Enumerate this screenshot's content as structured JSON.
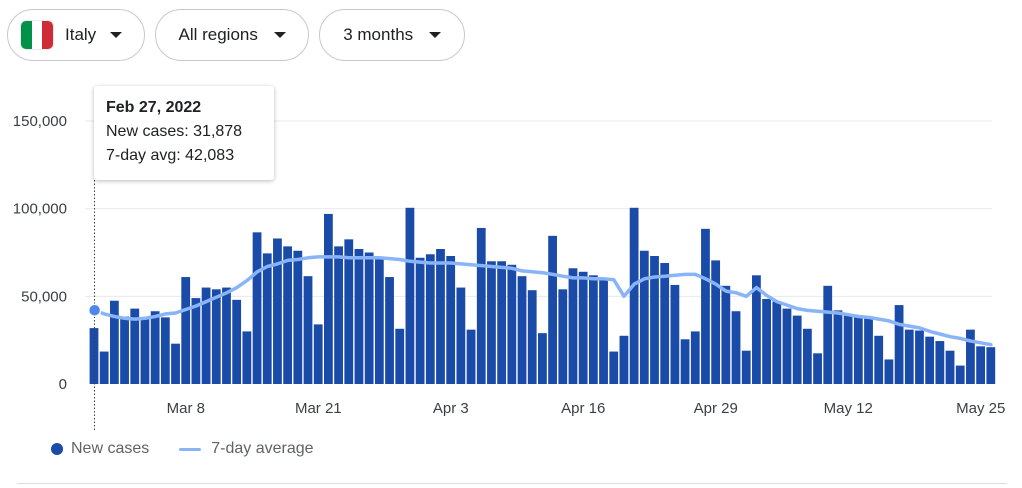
{
  "filters": {
    "country": {
      "label": "Italy",
      "flag_colors": [
        "#009246",
        "#ffffff",
        "#ce2b37"
      ]
    },
    "region": {
      "label": "All regions"
    },
    "period": {
      "label": "3 months"
    }
  },
  "tooltip": {
    "date": "Feb 27, 2022",
    "new_cases": "New cases: 31,878",
    "avg": "7-day avg: 42,083"
  },
  "legend": {
    "new_cases": "New cases",
    "avg": "7-day average"
  },
  "colors": {
    "bar": "#1a4ba8",
    "avg_line": "#8ab4f8",
    "grid": "#e8eaed"
  },
  "chart_data": {
    "type": "bar",
    "ylim": [
      0,
      150000
    ],
    "y_ticks": [
      {
        "value": 0,
        "label": "0"
      },
      {
        "value": 50000,
        "label": "50,000"
      },
      {
        "value": 100000,
        "label": "100,000"
      },
      {
        "value": 150000,
        "label": "150,000"
      }
    ],
    "x_ticks": [
      {
        "index": 9,
        "label": "Mar 8"
      },
      {
        "index": 22,
        "label": "Mar 21"
      },
      {
        "index": 35,
        "label": "Apr 3"
      },
      {
        "index": 48,
        "label": "Apr 16"
      },
      {
        "index": 61,
        "label": "Apr 29"
      },
      {
        "index": 74,
        "label": "May 12"
      },
      {
        "index": 87,
        "label": "May 25"
      }
    ],
    "selected_index": 0,
    "series": [
      {
        "name": "New cases",
        "values": [
          31878,
          18500,
          47500,
          38500,
          43000,
          38000,
          41500,
          38000,
          23000,
          61000,
          49000,
          55000,
          54000,
          55000,
          48000,
          30000,
          86500,
          74500,
          83000,
          78500,
          76000,
          61500,
          34000,
          97000,
          78500,
          82500,
          77000,
          75000,
          72000,
          61000,
          31500,
          100500,
          72000,
          74000,
          77000,
          73000,
          55000,
          31000,
          89000,
          70000,
          70000,
          68000,
          61500,
          53500,
          29000,
          84500,
          54000,
          66000,
          64000,
          62000,
          59500,
          18500,
          27500,
          100500,
          76000,
          73000,
          69000,
          56500,
          25500,
          30000,
          88500,
          70500,
          56000,
          41500,
          19000,
          62000,
          48500,
          47000,
          43000,
          39000,
          31500,
          17500,
          56000,
          42000,
          39000,
          38500,
          37500,
          27500,
          14000,
          45000,
          31000,
          30500,
          27000,
          24500,
          19000,
          10500,
          31000,
          21500,
          21000
        ]
      },
      {
        "name": "7-day average",
        "values": [
          42083,
          40000,
          38500,
          37500,
          37000,
          37500,
          38500,
          40000,
          40500,
          42500,
          44500,
          47000,
          49500,
          52000,
          55000,
          59000,
          64000,
          67000,
          68500,
          70500,
          71000,
          72000,
          72500,
          72500,
          72500,
          72000,
          72000,
          72000,
          72000,
          71500,
          71000,
          70000,
          69500,
          69000,
          69000,
          69000,
          68500,
          68000,
          67500,
          67000,
          66500,
          66000,
          64500,
          64000,
          63500,
          62500,
          61500,
          60500,
          60500,
          60000,
          60000,
          59500,
          50000,
          57000,
          60000,
          61000,
          61500,
          62000,
          62500,
          62500,
          60000,
          57000,
          53000,
          52000,
          50000,
          55000,
          50500,
          47000,
          45000,
          43000,
          42000,
          41500,
          41000,
          40500,
          39500,
          38500,
          38000,
          37000,
          36000,
          34000,
          33000,
          32000,
          30000,
          28500,
          27000,
          26000,
          24500,
          23500,
          22500
        ]
      }
    ]
  }
}
